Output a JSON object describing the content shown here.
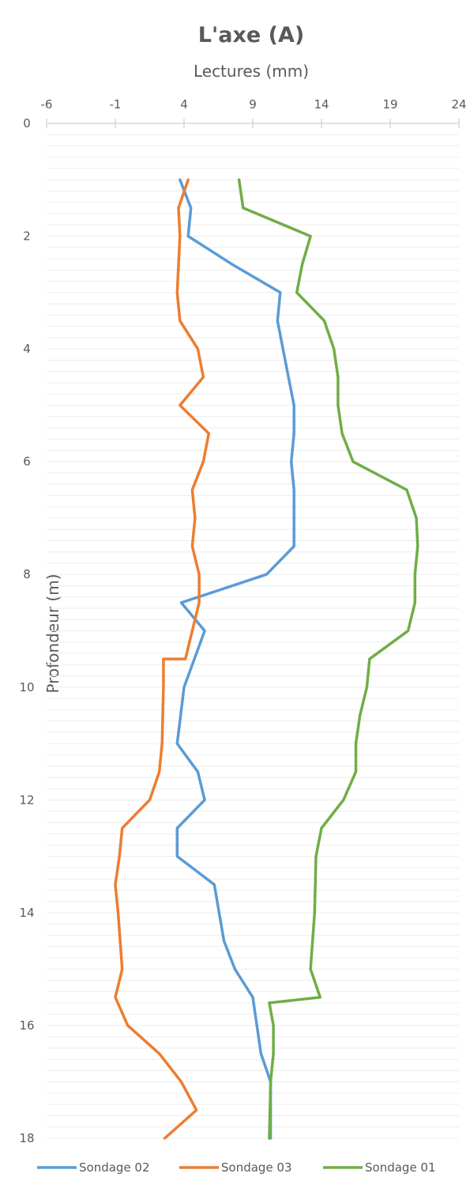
{
  "chart_data": {
    "type": "line",
    "title": "L'axe (A)",
    "xlabel": "Lectures (mm)",
    "ylabel": "Profondeur (m)",
    "xlim": [
      -6,
      24
    ],
    "ylim": [
      0,
      18
    ],
    "y_inverted": true,
    "x_ticks": [
      -6,
      -1,
      4,
      9,
      14,
      19,
      24
    ],
    "y_ticks": [
      0,
      2,
      4,
      6,
      8,
      10,
      12,
      14,
      16,
      18
    ],
    "grid": "horizontal minor",
    "legend_position": "bottom",
    "series": [
      {
        "name": "Sondage 02",
        "color": "#5B9BD5",
        "points": [
          [
            3.7,
            1
          ],
          [
            4.5,
            1.5
          ],
          [
            4.3,
            2
          ],
          [
            7.5,
            2.5
          ],
          [
            11.0,
            3
          ],
          [
            10.8,
            3.5
          ],
          [
            11.6,
            4.5
          ],
          [
            12.0,
            5
          ],
          [
            12.0,
            5.5
          ],
          [
            11.8,
            6
          ],
          [
            12.0,
            6.5
          ],
          [
            12.0,
            7
          ],
          [
            12.0,
            7.5
          ],
          [
            10.0,
            8
          ],
          [
            3.8,
            8.5
          ],
          [
            5.5,
            9
          ],
          [
            4.0,
            10
          ],
          [
            3.5,
            11
          ],
          [
            5.0,
            11.5
          ],
          [
            5.5,
            12
          ],
          [
            3.5,
            12.5
          ],
          [
            3.5,
            13
          ],
          [
            6.2,
            13.5
          ],
          [
            6.9,
            14.5
          ],
          [
            7.7,
            15
          ],
          [
            9.0,
            15.5
          ],
          [
            9.6,
            16.5
          ],
          [
            10.3,
            17
          ],
          [
            10.3,
            18
          ]
        ]
      },
      {
        "name": "Sondage 03",
        "color": "#ED7D31",
        "points": [
          [
            4.3,
            1
          ],
          [
            3.6,
            1.5
          ],
          [
            3.7,
            2
          ],
          [
            3.5,
            3
          ],
          [
            3.7,
            3.5
          ],
          [
            5.0,
            4
          ],
          [
            5.4,
            4.5
          ],
          [
            3.7,
            5
          ],
          [
            5.8,
            5.5
          ],
          [
            5.4,
            6
          ],
          [
            4.6,
            6.5
          ],
          [
            4.8,
            7
          ],
          [
            4.6,
            7.5
          ],
          [
            5.1,
            8
          ],
          [
            5.1,
            8.5
          ],
          [
            4.1,
            9.5
          ],
          [
            2.5,
            9.5
          ],
          [
            2.5,
            10
          ],
          [
            2.4,
            11
          ],
          [
            2.2,
            11.5
          ],
          [
            1.5,
            12
          ],
          [
            -0.5,
            12.5
          ],
          [
            -0.7,
            13
          ],
          [
            -1.0,
            13.5
          ],
          [
            -0.8,
            14
          ],
          [
            -0.5,
            15
          ],
          [
            -1.0,
            15.5
          ],
          [
            -0.1,
            16
          ],
          [
            2.2,
            16.5
          ],
          [
            3.8,
            17
          ],
          [
            4.9,
            17.5
          ],
          [
            2.6,
            18
          ]
        ]
      },
      {
        "name": "Sondage 01",
        "color": "#70AD47",
        "points": [
          [
            8.0,
            1
          ],
          [
            8.3,
            1.5
          ],
          [
            13.2,
            2
          ],
          [
            12.6,
            2.5
          ],
          [
            12.2,
            3
          ],
          [
            14.2,
            3.5
          ],
          [
            14.9,
            4
          ],
          [
            15.2,
            4.5
          ],
          [
            15.2,
            5
          ],
          [
            15.5,
            5.5
          ],
          [
            16.3,
            6
          ],
          [
            20.2,
            6.5
          ],
          [
            20.9,
            7
          ],
          [
            21.0,
            7.5
          ],
          [
            20.8,
            8
          ],
          [
            20.8,
            8.5
          ],
          [
            20.3,
            9
          ],
          [
            17.5,
            9.5
          ],
          [
            17.3,
            10
          ],
          [
            16.8,
            10.5
          ],
          [
            16.5,
            11
          ],
          [
            16.5,
            11.5
          ],
          [
            15.6,
            12
          ],
          [
            14.0,
            12.5
          ],
          [
            13.6,
            13
          ],
          [
            13.5,
            14
          ],
          [
            13.2,
            15
          ],
          [
            13.9,
            15.5
          ],
          [
            10.2,
            15.6
          ],
          [
            10.5,
            16
          ],
          [
            10.5,
            16.5
          ],
          [
            10.3,
            17
          ],
          [
            10.2,
            18
          ]
        ]
      }
    ]
  }
}
